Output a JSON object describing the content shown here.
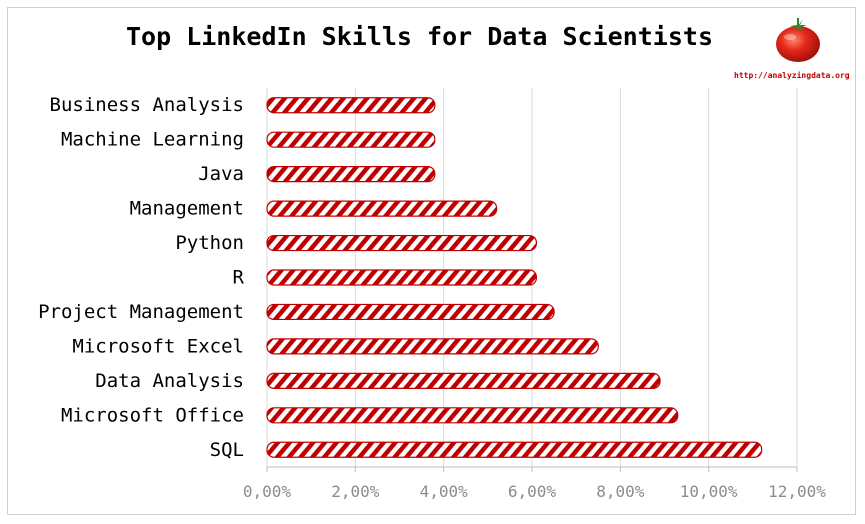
{
  "chart_data": {
    "type": "bar",
    "orientation": "horizontal",
    "title": "Top LinkedIn Skills for Data Scientists",
    "source_label": "http://analyzingdata.org",
    "categories": [
      "SQL",
      "Microsoft Office",
      "Data Analysis",
      "Microsoft Excel",
      "Project Management",
      "R",
      "Python",
      "Management",
      "Java",
      "Machine Learning",
      "Business Analysis"
    ],
    "values": [
      11.2,
      9.3,
      8.9,
      7.5,
      6.5,
      6.1,
      6.1,
      5.2,
      3.8,
      3.8,
      3.8
    ],
    "xlim": [
      0,
      12
    ],
    "xticks": [
      "0,00%",
      "2,00%",
      "4,00%",
      "6,00%",
      "8,00%",
      "10,00%",
      "12,00%"
    ],
    "grid": true,
    "bar_color": "#c00000",
    "bar_pattern": "diagonal-stripes"
  }
}
